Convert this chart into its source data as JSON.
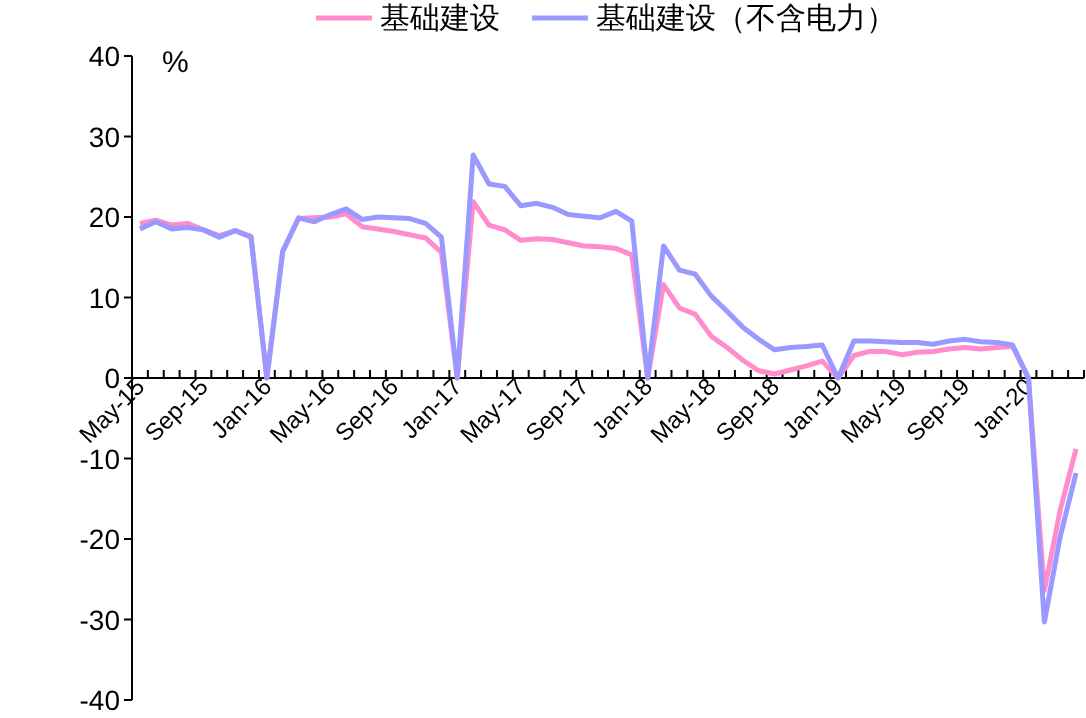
{
  "chart_data": {
    "type": "line",
    "legend": "top",
    "annotations": [
      "%"
    ],
    "ylim": [
      -40,
      40
    ],
    "yticks": [
      -40,
      -30,
      -20,
      -10,
      0,
      10,
      20,
      30,
      40
    ],
    "categories": [
      "May-15",
      null,
      null,
      null,
      "Sep-15",
      null,
      null,
      null,
      "Jan-16",
      null,
      null,
      null,
      "May-16",
      null,
      null,
      null,
      "Sep-16",
      null,
      null,
      null,
      "Jan-17",
      null,
      null,
      null,
      "May-17",
      null,
      null,
      null,
      "Sep-17",
      null,
      null,
      null,
      "Jan-18",
      null,
      null,
      null,
      "May-18",
      null,
      null,
      null,
      "Sep-18",
      null,
      null,
      null,
      "Jan-19",
      null,
      null,
      null,
      "May-19",
      null,
      null,
      null,
      "Sep-19",
      null,
      null,
      null,
      "Jan-20",
      null,
      null,
      null
    ],
    "series": [
      {
        "name": "基础建设",
        "color": "#ff8ccc",
        "values": [
          19.2,
          19.6,
          19.0,
          19.2,
          18.4,
          17.7,
          18.3,
          17.6,
          0,
          15.8,
          19.8,
          19.9,
          20.0,
          20.4,
          18.8,
          18.5,
          18.2,
          17.8,
          17.4,
          15.6,
          0,
          21.9,
          19.0,
          18.4,
          17.1,
          17.3,
          17.2,
          16.8,
          16.4,
          16.3,
          16.1,
          15.3,
          0,
          11.6,
          8.7,
          7.9,
          5.2,
          3.8,
          2.2,
          0.9,
          0.5,
          1.0,
          1.5,
          2.1,
          0,
          2.8,
          3.3,
          3.3,
          2.9,
          3.2,
          3.3,
          3.6,
          3.8,
          3.6,
          3.8,
          3.9,
          0,
          -26.4,
          -16.4,
          -8.8
        ]
      },
      {
        "name": "基础建设（不含电力）",
        "color": "#9999ff",
        "values": [
          18.5,
          19.4,
          18.5,
          18.7,
          18.4,
          17.5,
          18.3,
          17.5,
          0,
          15.7,
          19.9,
          19.4,
          20.3,
          21.0,
          19.7,
          20.0,
          19.9,
          19.8,
          19.2,
          17.5,
          0,
          27.7,
          24.1,
          23.8,
          21.4,
          21.7,
          21.2,
          20.3,
          20.1,
          19.9,
          20.7,
          19.5,
          0,
          16.4,
          13.4,
          12.9,
          10.2,
          8.3,
          6.3,
          4.8,
          3.5,
          3.8,
          3.9,
          4.1,
          0,
          4.6,
          4.6,
          4.5,
          4.4,
          4.4,
          4.2,
          4.6,
          4.8,
          4.5,
          4.4,
          4.1,
          0,
          -30.3,
          -19.7,
          -11.8
        ]
      }
    ]
  }
}
